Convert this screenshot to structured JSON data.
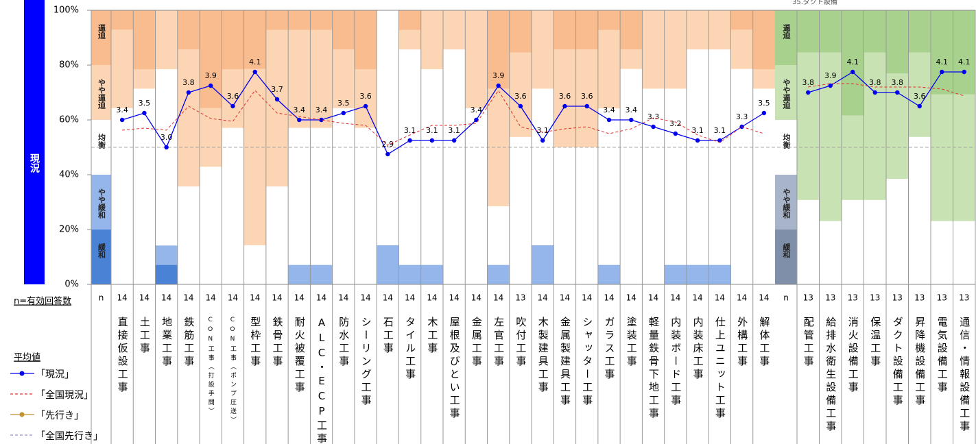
{
  "chart_data": {
    "type": "stacked_bar_line",
    "side_label": "現況",
    "annotation": "35.ダクト設備",
    "n_label": "n",
    "n_note": "n=有効回答数",
    "legend_title": "平均値",
    "ylim": [
      0,
      100
    ],
    "y2lim": [
      1,
      5
    ],
    "yticks": [
      {
        "value": 0,
        "label": "0%"
      },
      {
        "value": 20,
        "label": "20%"
      },
      {
        "value": 40,
        "label": "40%"
      },
      {
        "value": 60,
        "label": "60%"
      },
      {
        "value": 80,
        "label": "80%"
      },
      {
        "value": 100,
        "label": "100%"
      }
    ],
    "hline": 50,
    "group_sizes": [
      30,
      8
    ],
    "categories": [
      "直接仮設工事",
      "土工事",
      "地業工事",
      "鉄筋工事",
      "CON工事（打設手間）",
      "CON工事（ポンプ圧送）",
      "型枠工事",
      "鉄骨工事",
      "耐火被覆工事",
      "ALC・ECP工事",
      "防水工事",
      "シーリング工事",
      "石工事",
      "タイル工事",
      "木工事",
      "屋根及びとい工事",
      "金属工事",
      "左官工事",
      "吹付工事",
      "木製建具工事",
      "金属製建具工事",
      "シャッター工事",
      "ガラス工事",
      "塗装工事",
      "軽量鉄骨下地工事",
      "内装ボード工事",
      "内装床工事",
      "仕上ユニット工事",
      "外構工事",
      "解体工事",
      "配管工事",
      "給排水衛生設備工事",
      "消火設備工事",
      "保温工事",
      "ダクト設備工事",
      "昇降機設備工事",
      "電気設備工事",
      "通信・情報設備工事"
    ],
    "n": [
      14,
      14,
      14,
      14,
      14,
      14,
      14,
      14,
      14,
      14,
      14,
      14,
      14,
      14,
      14,
      14,
      14,
      14,
      13,
      14,
      14,
      14,
      14,
      14,
      14,
      14,
      14,
      14,
      14,
      14,
      13,
      13,
      13,
      13,
      13,
      13,
      13,
      13
    ],
    "series": [
      {
        "name": "緩和",
        "kind": "bar",
        "color": "#4a82d6",
        "color2": "#7f8fa9",
        "values": [
          0,
          0,
          7.1,
          0,
          0,
          0,
          0,
          0,
          0,
          0,
          0,
          0,
          0,
          0,
          0,
          0,
          0,
          0,
          0,
          0,
          0,
          0,
          0,
          0,
          0,
          0,
          0,
          0,
          0,
          0,
          0,
          0,
          0,
          0,
          0,
          0,
          0,
          0
        ]
      },
      {
        "name": "やや緩和",
        "kind": "bar",
        "color": "#94b6ea",
        "color2": "#a7b4ca",
        "values": [
          0,
          0,
          7.1,
          0,
          0,
          0,
          0,
          0,
          7.1,
          7.1,
          0,
          0,
          14.3,
          7.1,
          7.1,
          0,
          0,
          7.1,
          0,
          14.3,
          0,
          0,
          7.1,
          0,
          0,
          7.1,
          7.1,
          7.1,
          0,
          0,
          0,
          0,
          0,
          0,
          0,
          0,
          0,
          0
        ]
      },
      {
        "name": "均衡",
        "kind": "bar",
        "color": "#ffffff",
        "color2": "#ffffff",
        "values": [
          64.3,
          71.4,
          64.3,
          35.7,
          42.9,
          57.1,
          14.3,
          35.7,
          50,
          50,
          64.3,
          57.1,
          85.7,
          78.6,
          71.4,
          85.7,
          64.3,
          21.4,
          53.8,
          57.1,
          50,
          50,
          57.1,
          78.6,
          71.4,
          64.3,
          78.6,
          78.6,
          78.6,
          71.4,
          30.8,
          23.1,
          30.8,
          30.8,
          38.5,
          53.8,
          23.1,
          23.1
        ]
      },
      {
        "name": "やや逼迫",
        "kind": "bar",
        "color": "#fcd5b5",
        "color2": "#c8e2b3",
        "values": [
          28.6,
          7.1,
          21.4,
          50,
          21.4,
          21.4,
          64.3,
          57.1,
          35.7,
          35.7,
          21.4,
          21.4,
          0,
          7.1,
          21.4,
          14.3,
          35.7,
          42.9,
          30.8,
          28.6,
          35.7,
          35.7,
          28.6,
          7.1,
          28.6,
          28.6,
          14.3,
          14.3,
          14.3,
          7.1,
          53.8,
          61.5,
          30.8,
          53.8,
          38.5,
          30.8,
          46.2,
          46.2
        ]
      },
      {
        "name": "逼迫",
        "kind": "bar",
        "color": "#f9bc8f",
        "color2": "#a9d18e",
        "values": [
          7.1,
          21.4,
          0,
          14.3,
          35.7,
          21.4,
          21.4,
          7.1,
          7.1,
          7.1,
          14.3,
          21.4,
          0,
          7.1,
          0,
          0,
          0,
          28.6,
          15.4,
          0,
          14.3,
          14.3,
          7.1,
          14.3,
          0,
          0,
          0,
          0,
          7.1,
          21.4,
          15.4,
          15.4,
          38.5,
          15.4,
          23.1,
          15.4,
          30.8,
          30.8
        ]
      },
      {
        "name": "「現況」",
        "kind": "line",
        "axis": "y2",
        "color": "#0000ee",
        "marker": true,
        "values": [
          3.4,
          3.5,
          3.0,
          3.8,
          3.9,
          3.6,
          4.1,
          3.7,
          3.4,
          3.4,
          3.5,
          3.6,
          2.9,
          3.1,
          3.1,
          3.1,
          3.4,
          3.9,
          3.6,
          3.1,
          3.6,
          3.6,
          3.4,
          3.4,
          3.3,
          3.2,
          3.1,
          3.1,
          3.3,
          3.5,
          3.8,
          3.9,
          4.1,
          3.8,
          3.8,
          3.6,
          4.1,
          4.1
        ],
        "value_labels": [
          "3.4",
          "3.5",
          "3.0",
          "3.8",
          "3.9",
          "3.6",
          "4.1",
          "3.7",
          "3.4",
          "3.4",
          "3.5",
          "3.6",
          "2.9",
          "3.1",
          "3.1",
          "3.1",
          "3.4",
          "3.9",
          "3.6",
          "3.1",
          "3.6",
          "3.6",
          "3.4",
          "3.4",
          "3.3",
          "3.2",
          "3.1",
          "3.1",
          "3.3",
          "3.5",
          "3.8",
          "3.9",
          "4.1",
          "3.8",
          "3.8",
          "3.6",
          "4.1",
          "4.1"
        ]
      },
      {
        "name": "「全国現況」",
        "kind": "line",
        "axis": "y2",
        "color": "#e03030",
        "dashed": true,
        "values": [
          3.25,
          3.28,
          3.25,
          3.6,
          3.42,
          3.38,
          3.83,
          3.5,
          3.45,
          3.4,
          3.35,
          3.32,
          3.03,
          3.18,
          3.32,
          3.32,
          3.35,
          3.83,
          3.3,
          3.22,
          3.27,
          3.3,
          3.2,
          3.27,
          3.43,
          3.37,
          3.18,
          3.07,
          3.3,
          3.2,
          3.88,
          3.93,
          3.93,
          3.88,
          3.88,
          3.88,
          3.85,
          3.75
        ]
      },
      {
        "name": "「先行き」",
        "kind": "line",
        "axis": "y2",
        "color": "#c0922a",
        "marker": true,
        "values": [
          null,
          null,
          null,
          null,
          null,
          null,
          null,
          null,
          null,
          null,
          null,
          null,
          null,
          null,
          null,
          null,
          null,
          null,
          null,
          null,
          null,
          null,
          null,
          null,
          null,
          null,
          null,
          null,
          null,
          null,
          null,
          null,
          null,
          null,
          null,
          null,
          null,
          null
        ]
      },
      {
        "name": "「全国先行き」",
        "kind": "line",
        "axis": "y2",
        "color": "#9b8ad0",
        "dashed": true,
        "values": [
          null,
          null,
          null,
          null,
          null,
          null,
          null,
          null,
          null,
          null,
          null,
          null,
          null,
          null,
          null,
          null,
          null,
          null,
          null,
          null,
          null,
          null,
          null,
          null,
          null,
          null,
          null,
          null,
          null,
          null,
          null,
          null,
          null,
          null,
          null,
          null,
          null,
          null
        ]
      }
    ]
  }
}
